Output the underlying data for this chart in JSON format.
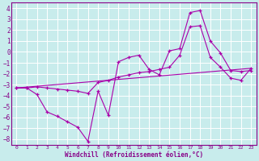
{
  "xlabel": "Windchill (Refroidissement éolien,°C)",
  "background_color": "#c8ecec",
  "grid_color": "#ffffff",
  "line_color": "#aa00aa",
  "xlim": [
    -0.5,
    23.5
  ],
  "ylim": [
    -8.5,
    4.5
  ],
  "xticks": [
    0,
    1,
    2,
    3,
    4,
    5,
    6,
    7,
    8,
    9,
    10,
    11,
    12,
    13,
    14,
    15,
    16,
    17,
    18,
    19,
    20,
    21,
    22,
    23
  ],
  "yticks": [
    -8,
    -7,
    -6,
    -5,
    -4,
    -3,
    -2,
    -1,
    0,
    1,
    2,
    3,
    4
  ],
  "line1_x": [
    0,
    1,
    2,
    3,
    4,
    5,
    6,
    7,
    8,
    9,
    10,
    11,
    12,
    13,
    14,
    15,
    16,
    17,
    18,
    19,
    20,
    21,
    22,
    23
  ],
  "line1_y": [
    -3.3,
    -3.3,
    -3.9,
    -5.5,
    -5.9,
    -6.4,
    -6.9,
    -8.2,
    -3.6,
    -5.8,
    -0.9,
    -0.5,
    -0.3,
    -1.6,
    -2.1,
    0.1,
    0.3,
    3.6,
    3.8,
    1.0,
    -0.1,
    -1.7,
    -1.8,
    -1.7
  ],
  "line2_x": [
    0,
    1,
    2,
    3,
    4,
    5,
    6,
    7,
    8,
    9,
    10,
    11,
    12,
    13,
    14,
    15,
    16,
    17,
    18,
    19,
    20,
    21,
    22,
    23
  ],
  "line2_y": [
    -3.3,
    -3.3,
    -3.2,
    -3.3,
    -3.4,
    -3.5,
    -3.6,
    -3.8,
    -2.8,
    -2.6,
    -2.3,
    -2.1,
    -1.9,
    -1.8,
    -1.6,
    -1.4,
    -0.3,
    2.3,
    2.4,
    -0.5,
    -1.4,
    -2.4,
    -2.6,
    -1.5
  ],
  "line3_x": [
    0,
    23
  ],
  "line3_y": [
    -3.3,
    -1.5
  ]
}
